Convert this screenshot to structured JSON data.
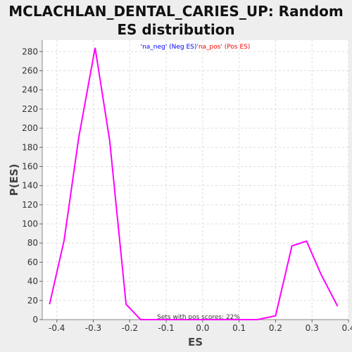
{
  "chart_data": {
    "type": "line",
    "title": "MCLACHLAN_DENTAL_CARIES_UP: Random ES distribution",
    "xlabel": "ES",
    "ylabel": "P(ES)",
    "xlim": [
      -0.44,
      0.4
    ],
    "ylim": [
      0,
      292
    ],
    "xticks": [
      -0.4,
      -0.3,
      -0.2,
      -0.1,
      0.0,
      0.1,
      0.2,
      0.3,
      0.4
    ],
    "xtick_labels": [
      "-0.4",
      "-0.3",
      "-0.2",
      "-0.1",
      "0.0",
      "0.1",
      "0.2",
      "0.3",
      "0.4"
    ],
    "yticks": [
      0,
      20,
      40,
      60,
      80,
      100,
      120,
      140,
      160,
      180,
      200,
      220,
      240,
      260,
      280
    ],
    "ytick_labels": [
      "0",
      "20",
      "40",
      "60",
      "80",
      "100",
      "120",
      "140",
      "160",
      "180",
      "200",
      "220",
      "240",
      "260",
      "280"
    ],
    "grid": true,
    "legend": {
      "placement": "top-center",
      "entries": [
        {
          "label": "'na_neg' (Neg ES)",
          "color": "#0000ff"
        },
        {
          "label": "'na_pos' (Pos ES)",
          "color": "#ff0000"
        }
      ]
    },
    "series": [
      {
        "color": "#ff00ff",
        "x": [
          -0.42,
          -0.38,
          -0.34,
          -0.295,
          -0.255,
          -0.21,
          -0.17,
          -0.13,
          -0.09,
          -0.05,
          0.0,
          0.05,
          0.1,
          0.15,
          0.2,
          0.245,
          0.285,
          0.325,
          0.37
        ],
        "y": [
          16,
          83,
          190,
          284,
          187,
          16,
          0,
          0,
          0,
          0,
          0,
          0,
          0,
          0,
          4,
          77,
          82,
          47,
          14
        ]
      }
    ],
    "annotation": "Sets with pos scores: 22%"
  }
}
